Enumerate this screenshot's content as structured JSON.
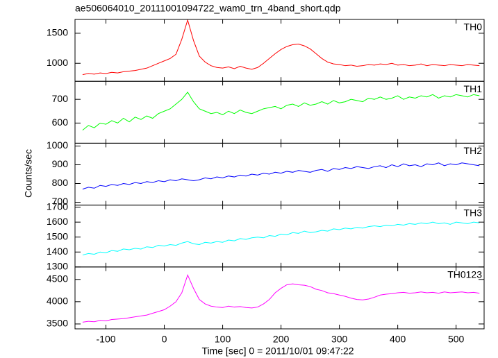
{
  "chart_data": [
    {
      "type": "line",
      "title": "ae506064010_20111001094722_wam0_trn_4band_short.qdp",
      "x": [
        -140,
        -130,
        -120,
        -110,
        -100,
        -90,
        -80,
        -70,
        -60,
        -50,
        -40,
        -30,
        -20,
        -10,
        0,
        10,
        20,
        30,
        40,
        50,
        60,
        70,
        80,
        90,
        100,
        110,
        120,
        130,
        140,
        150,
        160,
        170,
        180,
        190,
        200,
        210,
        220,
        230,
        240,
        250,
        260,
        270,
        280,
        290,
        300,
        310,
        320,
        330,
        340,
        350,
        360,
        370,
        380,
        390,
        400,
        410,
        420,
        430,
        440,
        450,
        460,
        470,
        480,
        490,
        500,
        510,
        520,
        530,
        540
      ],
      "series": [
        {
          "name": "TH0",
          "color": "#ff0000",
          "values": [
            810,
            830,
            820,
            840,
            830,
            850,
            840,
            860,
            870,
            880,
            900,
            920,
            960,
            1000,
            1040,
            1080,
            1150,
            1400,
            1720,
            1380,
            1120,
            1020,
            960,
            930,
            920,
            940,
            910,
            950,
            920,
            900,
            930,
            1000,
            1080,
            1160,
            1230,
            1280,
            1310,
            1320,
            1290,
            1240,
            1160,
            1080,
            1020,
            990,
            980,
            960,
            970,
            950,
            960,
            980,
            970,
            990,
            980,
            1000,
            970,
            980,
            960,
            970,
            990,
            960,
            980,
            970,
            960,
            980,
            970,
            960,
            980,
            970,
            960
          ]
        }
      ],
      "xlim": [
        -153,
        548
      ],
      "ylim": [
        700,
        1730
      ],
      "yticks": [
        1000,
        1500
      ]
    },
    {
      "type": "line",
      "x": [
        -140,
        -130,
        -120,
        -110,
        -100,
        -90,
        -80,
        -70,
        -60,
        -50,
        -40,
        -30,
        -20,
        -10,
        0,
        10,
        20,
        30,
        40,
        50,
        60,
        70,
        80,
        90,
        100,
        110,
        120,
        130,
        140,
        150,
        160,
        170,
        180,
        190,
        200,
        210,
        220,
        230,
        240,
        250,
        260,
        270,
        280,
        290,
        300,
        310,
        320,
        330,
        340,
        350,
        360,
        370,
        380,
        390,
        400,
        410,
        420,
        430,
        440,
        450,
        460,
        470,
        480,
        490,
        500,
        510,
        520,
        530,
        540
      ],
      "series": [
        {
          "name": "TH1",
          "color": "#00ff00",
          "values": [
            570,
            590,
            580,
            600,
            595,
            610,
            600,
            620,
            605,
            625,
            615,
            630,
            620,
            640,
            650,
            660,
            680,
            700,
            730,
            690,
            660,
            650,
            640,
            645,
            635,
            650,
            640,
            655,
            645,
            640,
            650,
            660,
            665,
            670,
            660,
            675,
            680,
            670,
            685,
            675,
            680,
            690,
            680,
            695,
            685,
            690,
            700,
            695,
            690,
            705,
            700,
            710,
            700,
            705,
            715,
            700,
            710,
            705,
            715,
            710,
            720,
            705,
            715,
            710,
            720,
            715,
            710,
            720,
            715
          ]
        }
      ],
      "xlim": [
        -153,
        548
      ],
      "ylim": [
        515,
        776
      ],
      "yticks": [
        600,
        700
      ]
    },
    {
      "type": "line",
      "ylabel": "Counts/sec",
      "x": [
        -140,
        -130,
        -120,
        -110,
        -100,
        -90,
        -80,
        -70,
        -60,
        -50,
        -40,
        -30,
        -20,
        -10,
        0,
        10,
        20,
        30,
        40,
        50,
        60,
        70,
        80,
        90,
        100,
        110,
        120,
        130,
        140,
        150,
        160,
        170,
        180,
        190,
        200,
        210,
        220,
        230,
        240,
        250,
        260,
        270,
        280,
        290,
        300,
        310,
        320,
        330,
        340,
        350,
        360,
        370,
        380,
        390,
        400,
        410,
        420,
        430,
        440,
        450,
        460,
        470,
        480,
        490,
        500,
        510,
        520,
        530,
        540
      ],
      "series": [
        {
          "name": "TH2",
          "color": "#0000ff",
          "values": [
            770,
            780,
            775,
            790,
            785,
            795,
            790,
            800,
            795,
            805,
            800,
            810,
            805,
            815,
            810,
            820,
            815,
            825,
            820,
            815,
            820,
            830,
            825,
            835,
            830,
            840,
            835,
            845,
            840,
            850,
            845,
            855,
            850,
            860,
            855,
            865,
            860,
            870,
            865,
            860,
            870,
            875,
            865,
            880,
            875,
            885,
            880,
            890,
            885,
            880,
            890,
            895,
            885,
            900,
            890,
            905,
            895,
            900,
            890,
            905,
            900,
            910,
            895,
            905,
            900,
            910,
            905,
            900,
            895
          ]
        }
      ],
      "xlim": [
        -153,
        548
      ],
      "ylim": [
        685,
        1015
      ],
      "yticks": [
        700,
        800,
        900,
        1000
      ]
    },
    {
      "type": "line",
      "x": [
        -140,
        -130,
        -120,
        -110,
        -100,
        -90,
        -80,
        -70,
        -60,
        -50,
        -40,
        -30,
        -20,
        -10,
        0,
        10,
        20,
        30,
        40,
        50,
        60,
        70,
        80,
        90,
        100,
        110,
        120,
        130,
        140,
        150,
        160,
        170,
        180,
        190,
        200,
        210,
        220,
        230,
        240,
        250,
        260,
        270,
        280,
        290,
        300,
        310,
        320,
        330,
        340,
        350,
        360,
        370,
        380,
        390,
        400,
        410,
        420,
        430,
        440,
        450,
        460,
        470,
        480,
        490,
        500,
        510,
        520,
        530,
        540
      ],
      "series": [
        {
          "name": "TH3",
          "color": "#00ffff",
          "values": [
            1380,
            1390,
            1385,
            1400,
            1395,
            1410,
            1405,
            1420,
            1415,
            1425,
            1420,
            1435,
            1430,
            1445,
            1440,
            1450,
            1445,
            1460,
            1470,
            1455,
            1450,
            1465,
            1460,
            1470,
            1465,
            1480,
            1475,
            1490,
            1485,
            1495,
            1500,
            1495,
            1510,
            1505,
            1520,
            1515,
            1530,
            1525,
            1540,
            1530,
            1535,
            1545,
            1540,
            1555,
            1550,
            1560,
            1555,
            1565,
            1560,
            1570,
            1575,
            1570,
            1580,
            1575,
            1585,
            1580,
            1590,
            1585,
            1595,
            1590,
            1600,
            1590,
            1595,
            1585,
            1600,
            1595,
            1590,
            1600,
            1595
          ]
        }
      ],
      "xlim": [
        -153,
        548
      ],
      "ylim": [
        1300,
        1714
      ],
      "yticks": [
        1300,
        1400,
        1500,
        1600,
        1700
      ]
    },
    {
      "type": "line",
      "xlabel": "Time [sec] 0 = 2011/10/01 09:47:22",
      "x": [
        -140,
        -130,
        -120,
        -110,
        -100,
        -90,
        -80,
        -70,
        -60,
        -50,
        -40,
        -30,
        -20,
        -10,
        0,
        10,
        20,
        30,
        40,
        50,
        60,
        70,
        80,
        90,
        100,
        110,
        120,
        130,
        140,
        150,
        160,
        170,
        180,
        190,
        200,
        210,
        220,
        230,
        240,
        250,
        260,
        270,
        280,
        290,
        300,
        310,
        320,
        330,
        340,
        350,
        360,
        370,
        380,
        390,
        400,
        410,
        420,
        430,
        440,
        450,
        460,
        470,
        480,
        490,
        500,
        510,
        520,
        530,
        540
      ],
      "series": [
        {
          "name": "TH0123",
          "color": "#ff00ff",
          "values": [
            3540,
            3560,
            3550,
            3580,
            3570,
            3600,
            3610,
            3620,
            3640,
            3660,
            3680,
            3700,
            3740,
            3780,
            3820,
            3900,
            4000,
            4200,
            4600,
            4300,
            4050,
            3950,
            3900,
            3880,
            3870,
            3900,
            3880,
            3890,
            3870,
            3860,
            3880,
            3950,
            4050,
            4200,
            4300,
            4380,
            4400,
            4380,
            4370,
            4340,
            4280,
            4250,
            4200,
            4180,
            4150,
            4120,
            4080,
            4050,
            4040,
            4060,
            4100,
            4150,
            4170,
            4180,
            4200,
            4210,
            4190,
            4200,
            4220,
            4200,
            4210,
            4190,
            4220,
            4200,
            4210,
            4220,
            4200,
            4210,
            4190
          ]
        }
      ],
      "xlim": [
        -153,
        548
      ],
      "xticks": [
        -100,
        0,
        100,
        200,
        300,
        400,
        500
      ],
      "ylim": [
        3390,
        4780
      ],
      "yticks": [
        3500,
        4000,
        4500
      ]
    }
  ]
}
